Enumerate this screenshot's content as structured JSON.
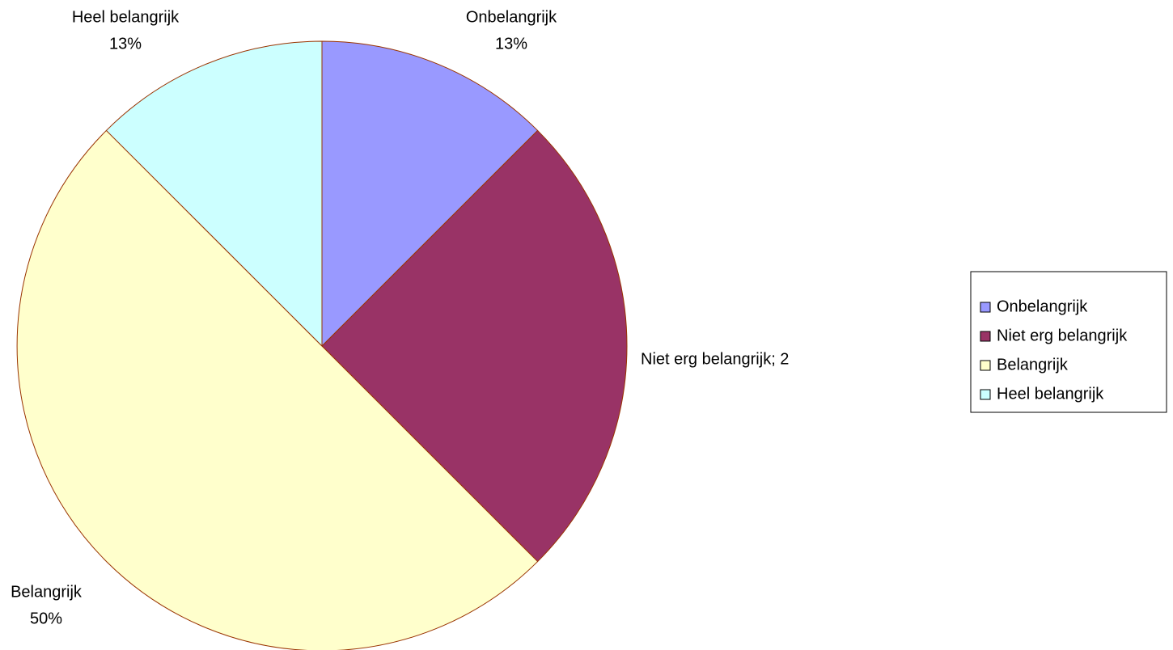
{
  "chart_data": {
    "type": "pie",
    "categories": [
      "Onbelangrijk",
      "Niet erg belangrijk",
      "Belangrijk",
      "Heel belangrijk"
    ],
    "values": [
      12.5,
      25,
      50,
      12.5
    ],
    "value_labels": [
      "13%",
      "Niet erg belangrijk; 2",
      "50%",
      "13%"
    ],
    "colors": [
      "#9999ff",
      "#993366",
      "#ffffcc",
      "#ccffff"
    ],
    "edge_color": "#993300",
    "legend": "right"
  }
}
